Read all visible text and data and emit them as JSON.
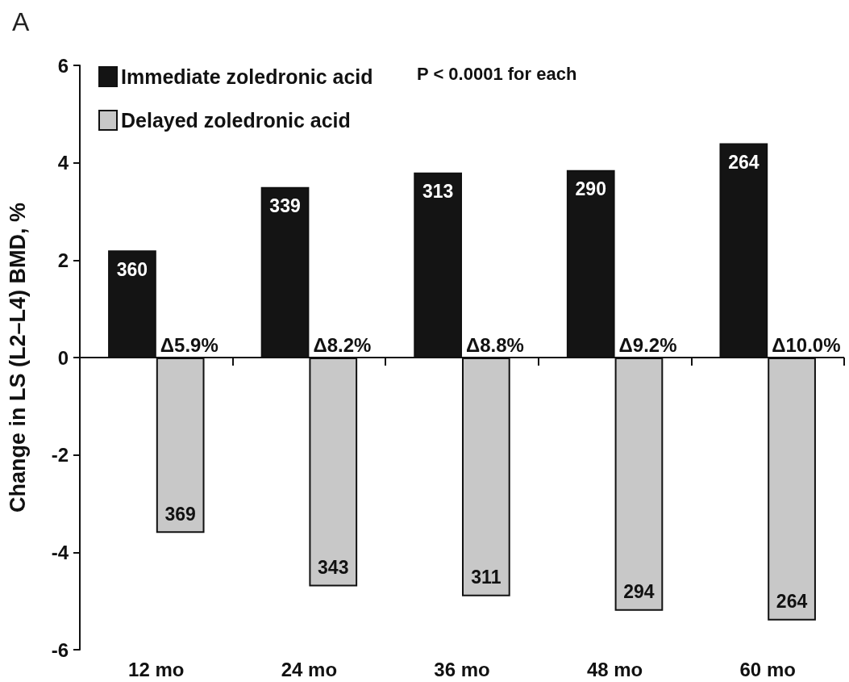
{
  "chart_data": {
    "type": "bar",
    "title": "A",
    "ylabel": "Change in LS (L2–L4) BMD, %",
    "categories": [
      "12 mo",
      "24 mo",
      "36 mo",
      "48 mo",
      "60 mo"
    ],
    "series": [
      {
        "name": "Immediate zoledronic acid",
        "color": "#141414",
        "values": [
          2.2,
          3.5,
          3.8,
          3.85,
          4.4
        ]
      },
      {
        "name": "Delayed zoledronic acid",
        "color": "#c8c8c8",
        "values": [
          -3.6,
          -4.7,
          -4.9,
          -5.2,
          -5.4
        ]
      }
    ],
    "ylim": [
      -6,
      6
    ],
    "yticks": [
      -6,
      -4,
      -2,
      0,
      2,
      4,
      6
    ],
    "grid": false,
    "legend": "top left",
    "ref_lines": [
      {
        "axis": "y",
        "value": 0
      }
    ],
    "annotations": [
      "P < 0.0001 for each",
      {
        "text": "360",
        "x": "12 mo",
        "y": 2.2
      },
      {
        "text": "339",
        "x": "24 mo",
        "y": 3.5
      },
      {
        "text": "313",
        "x": "36 mo",
        "y": 3.8
      },
      {
        "text": "290",
        "x": "48 mo",
        "y": 3.85
      },
      {
        "text": "264",
        "x": "60 mo",
        "y": 4.4
      },
      {
        "text": "369",
        "x": "12 mo",
        "y": -3.6
      },
      {
        "text": "343",
        "x": "24 mo",
        "y": -4.7
      },
      {
        "text": "311",
        "x": "36 mo",
        "y": -4.9
      },
      {
        "text": "294",
        "x": "48 mo",
        "y": -5.2
      },
      {
        "text": "264",
        "x": "60 mo",
        "y": -5.4
      },
      {
        "text": "Δ5.9%",
        "x": "12 mo",
        "y": 0
      },
      {
        "text": "Δ8.2%",
        "x": "24 mo",
        "y": 0
      },
      {
        "text": "Δ8.8%",
        "x": "36 mo",
        "y": 0
      },
      {
        "text": "Δ9.2%",
        "x": "48 mo",
        "y": 0
      },
      {
        "text": "Δ10.0%",
        "x": "60 mo",
        "y": 0
      }
    ]
  }
}
